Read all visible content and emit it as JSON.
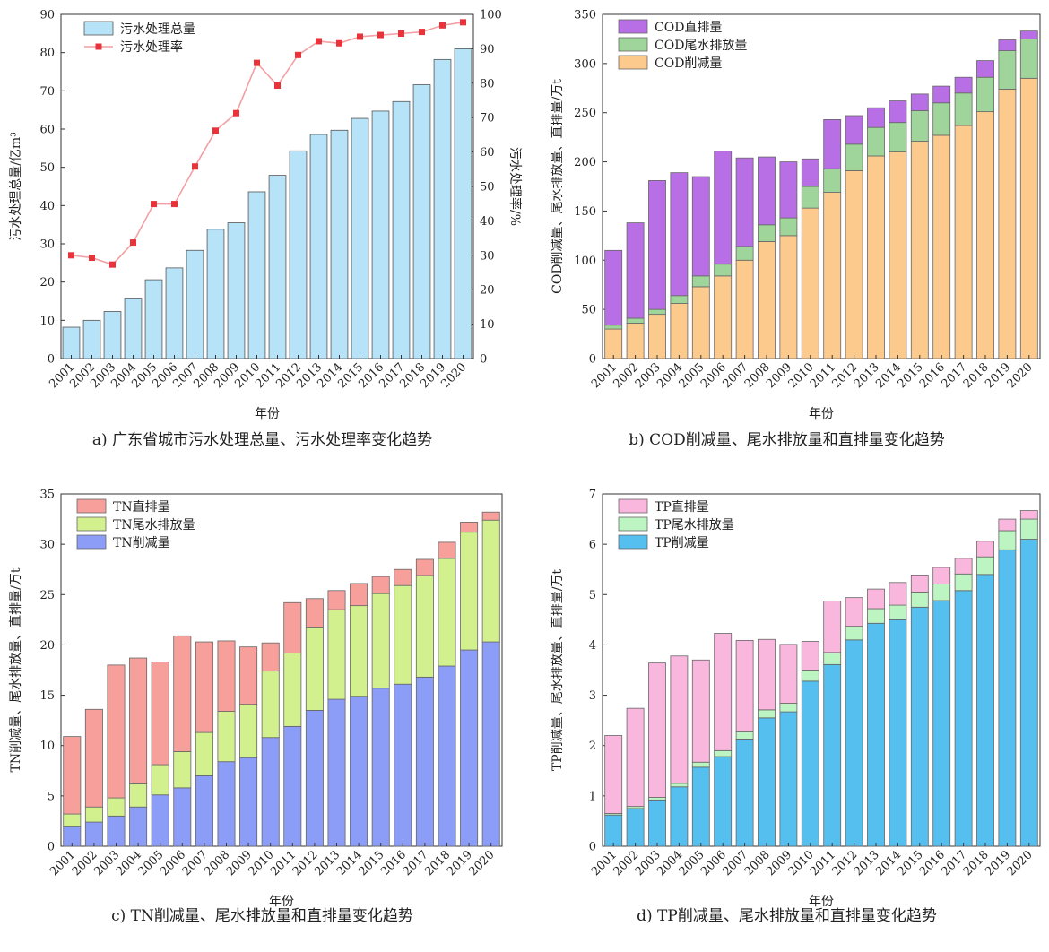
{
  "chart_data": [
    {
      "id": "a",
      "type": "bar+line",
      "caption": "a) 广东省城市污水处理总量、污水处理率变化趋势",
      "xlabel": "年份",
      "ylabel": "污水处理总量/亿m³",
      "y2label": "污水处理率/%",
      "ylim": [
        0,
        90
      ],
      "y2lim": [
        0,
        100
      ],
      "yticks": [
        0,
        10,
        20,
        30,
        40,
        50,
        60,
        70,
        80,
        90
      ],
      "y2ticks": [
        0,
        10,
        20,
        30,
        40,
        50,
        60,
        70,
        80,
        90,
        100
      ],
      "legend_position": "top-left",
      "categories": [
        "2001",
        "2002",
        "2003",
        "2004",
        "2005",
        "2006",
        "2007",
        "2008",
        "2009",
        "2010",
        "2011",
        "2012",
        "2013",
        "2014",
        "2015",
        "2016",
        "2017",
        "2018",
        "2019",
        "2020"
      ],
      "series": [
        {
          "name": "污水处理总量",
          "kind": "bar",
          "axis": "left",
          "color": "#b7e3f8",
          "values": [
            8.2,
            10.0,
            12.3,
            15.8,
            20.6,
            23.7,
            28.3,
            33.8,
            35.5,
            43.6,
            47.9,
            54.3,
            58.6,
            59.7,
            62.8,
            64.7,
            67.2,
            71.6,
            78.2,
            81.0
          ]
        },
        {
          "name": "污水处理率",
          "kind": "line",
          "axis": "right",
          "color": "#e8333a",
          "values": [
            30.0,
            29.3,
            27.3,
            33.7,
            44.9,
            44.9,
            55.8,
            66.2,
            71.3,
            85.9,
            79.3,
            88.2,
            92.2,
            91.6,
            93.5,
            94.0,
            94.4,
            94.9,
            96.8,
            97.7
          ]
        }
      ]
    },
    {
      "id": "b",
      "type": "stacked-bar",
      "caption": "b) COD削减量、尾水排放量和直排量变化趋势",
      "xlabel": "年份",
      "ylabel": "COD削减量、尾水排放量、直排量/万t",
      "ylim": [
        0,
        350
      ],
      "yticks": [
        0,
        50,
        100,
        150,
        200,
        250,
        300,
        350
      ],
      "legend_position": "top-left",
      "legend_order": [
        2,
        1,
        0
      ],
      "categories": [
        "2001",
        "2002",
        "2003",
        "2004",
        "2005",
        "2006",
        "2007",
        "2008",
        "2009",
        "2010",
        "2011",
        "2012",
        "2013",
        "2014",
        "2015",
        "2016",
        "2017",
        "2018",
        "2019",
        "2020"
      ],
      "series": [
        {
          "name": "COD削减量",
          "color": "#fdca8e",
          "values": [
            30,
            36,
            45,
            56,
            73,
            84,
            100,
            119,
            125,
            153,
            169,
            191,
            206,
            210,
            221,
            227,
            237,
            251,
            274,
            285
          ]
        },
        {
          "name": "COD尾水排放量",
          "color": "#9fd59a",
          "values": [
            4,
            5,
            5,
            8,
            11,
            12,
            14,
            17,
            18,
            22,
            24,
            27,
            29,
            30,
            31,
            33,
            33,
            35,
            39,
            40
          ]
        },
        {
          "name": "COD直排量",
          "color": "#b86fe6",
          "values": [
            76,
            97,
            131,
            125,
            101,
            115,
            90,
            69,
            57,
            28,
            50,
            29,
            20,
            22,
            17,
            17,
            16,
            17,
            11,
            8
          ]
        }
      ]
    },
    {
      "id": "c",
      "type": "stacked-bar",
      "caption": "c) TN削减量、尾水排放量和直排量变化趋势",
      "xlabel": "年份",
      "ylabel": "TN削减量、尾水排放量、直排量/万t",
      "ylim": [
        0,
        35
      ],
      "yticks": [
        0,
        5,
        10,
        15,
        20,
        25,
        30,
        35
      ],
      "legend_position": "top-left",
      "legend_order": [
        2,
        1,
        0
      ],
      "categories": [
        "2001",
        "2002",
        "2003",
        "2004",
        "2005",
        "2006",
        "2007",
        "2008",
        "2009",
        "2010",
        "2011",
        "2012",
        "2013",
        "2014",
        "2015",
        "2016",
        "2017",
        "2018",
        "2019",
        "2020"
      ],
      "series": [
        {
          "name": "TN削减量",
          "color": "#8c9df7",
          "values": [
            2.0,
            2.4,
            3.0,
            3.9,
            5.1,
            5.8,
            7.0,
            8.4,
            8.8,
            10.8,
            11.9,
            13.5,
            14.6,
            14.9,
            15.7,
            16.1,
            16.8,
            17.9,
            19.5,
            20.3
          ]
        },
        {
          "name": "TN尾水排放量",
          "color": "#d2f08e",
          "values": [
            1.2,
            1.5,
            1.8,
            2.3,
            3.0,
            3.6,
            4.3,
            5.0,
            5.3,
            6.6,
            7.3,
            8.2,
            8.9,
            9.0,
            9.4,
            9.8,
            10.1,
            10.7,
            11.7,
            12.1
          ]
        },
        {
          "name": "TN直排量",
          "color": "#f7a09b",
          "values": [
            7.7,
            9.7,
            13.2,
            12.5,
            10.2,
            11.5,
            9.0,
            7.0,
            5.7,
            2.8,
            5.0,
            2.9,
            1.9,
            2.2,
            1.7,
            1.6,
            1.6,
            1.6,
            1.0,
            0.8
          ]
        }
      ]
    },
    {
      "id": "d",
      "type": "stacked-bar",
      "caption": "d) TP削减量、尾水排放量和直排量变化趋势",
      "xlabel": "年份",
      "ylabel": "TP削减量、尾水排放量、直排量/万t",
      "ylim": [
        0,
        7
      ],
      "yticks": [
        0,
        1,
        2,
        3,
        4,
        5,
        6,
        7
      ],
      "legend_position": "top-left",
      "legend_order": [
        2,
        1,
        0
      ],
      "categories": [
        "2001",
        "2002",
        "2003",
        "2004",
        "2005",
        "2006",
        "2007",
        "2008",
        "2009",
        "2010",
        "2011",
        "2012",
        "2013",
        "2014",
        "2015",
        "2016",
        "2017",
        "2018",
        "2019",
        "2020"
      ],
      "series": [
        {
          "name": "TP削减量",
          "color": "#55bff0",
          "values": [
            0.62,
            0.75,
            0.92,
            1.18,
            1.57,
            1.78,
            2.13,
            2.55,
            2.67,
            3.28,
            3.61,
            4.1,
            4.43,
            4.5,
            4.75,
            4.88,
            5.08,
            5.4,
            5.89,
            6.1
          ]
        },
        {
          "name": "TP尾水排放量",
          "color": "#bcf4c2",
          "values": [
            0.03,
            0.04,
            0.05,
            0.07,
            0.1,
            0.12,
            0.14,
            0.16,
            0.17,
            0.22,
            0.24,
            0.27,
            0.29,
            0.29,
            0.3,
            0.33,
            0.33,
            0.35,
            0.38,
            0.4
          ]
        },
        {
          "name": "TP直排量",
          "color": "#f9b7de",
          "values": [
            1.55,
            1.95,
            2.67,
            2.53,
            2.03,
            2.33,
            1.82,
            1.4,
            1.17,
            0.57,
            1.02,
            0.57,
            0.39,
            0.45,
            0.34,
            0.33,
            0.31,
            0.31,
            0.23,
            0.17
          ]
        }
      ]
    }
  ]
}
